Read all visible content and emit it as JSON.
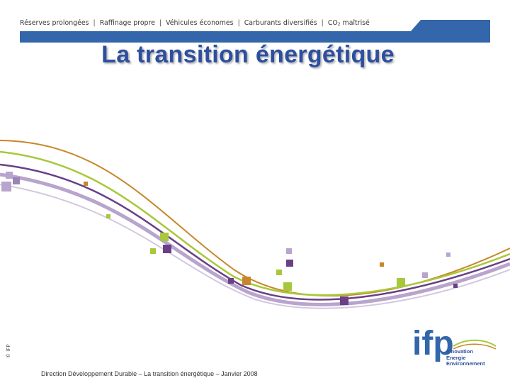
{
  "nav": {
    "item1": "Réserves prolongées",
    "item2": "Raffinage propre",
    "item3": "Véhicules économes",
    "item4": "Carburants diversifiés",
    "item5_prefix": "CO",
    "item5_sub": "2",
    "item5_suffix": " maîtrisé",
    "separator": "|"
  },
  "title": "La transition énergétique",
  "copyright": "© IFP",
  "footer": "Direction Développement Durable – La transition énergétique – Janvier 2008",
  "logo": {
    "text": "ifp",
    "line1": "Innovation",
    "line2": "Energie",
    "line3": "Environnement"
  },
  "colors": {
    "brand_blue": "#3366aa",
    "title_blue": "#2e4f9e",
    "orange": "#c8862a",
    "lime": "#a8c83c",
    "purple": "#6a3f86",
    "lavender": "#b8a4cc"
  }
}
